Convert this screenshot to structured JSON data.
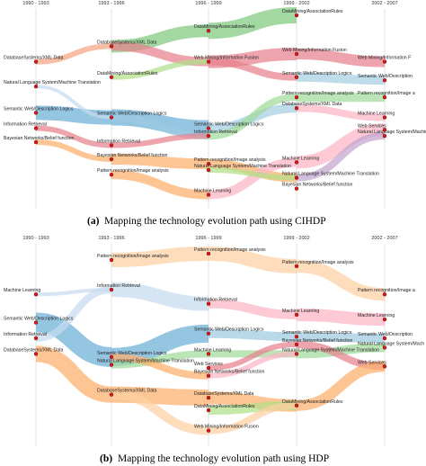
{
  "panels": [
    {
      "id": "a",
      "caption_letter": "(a)",
      "caption_text": "Mapping the technology evolution path using CIHDP",
      "periods": [
        "1990 - 1993",
        "1993 - 1996",
        "1996 - 1999",
        "1999 - 2002",
        "2002 - 2007"
      ],
      "nodes": [
        {
          "label": "DataMining/AssociationRules",
          "col": 3,
          "row": 0
        },
        {
          "label": "DataMining/AssociationRules",
          "col": 2,
          "row": 1
        },
        {
          "label": "DatabaseSystems/XML Data",
          "col": 1,
          "row": 2
        },
        {
          "label": "DatabaseSystems/XML Data",
          "col": 0,
          "row": 3
        },
        {
          "label": "Web Mining/Information Fusion",
          "col": 3,
          "row": 2.5
        },
        {
          "label": "Web Mining/Information Fusion",
          "col": 2,
          "row": 3
        },
        {
          "label": "Web Mining/Information F",
          "col": 4,
          "row": 3
        },
        {
          "label": "DataMining/AssociationRules",
          "col": 1,
          "row": 4
        },
        {
          "label": "Semantic Web/Description Logics",
          "col": 3,
          "row": 4
        },
        {
          "label": "Semantic Web/Description",
          "col": 4,
          "row": 4.2
        },
        {
          "label": "Natural Language System/Machine Translation",
          "col": 0,
          "row": 4.6
        },
        {
          "label": "Pattern recognition/Image analysis",
          "col": 3,
          "row": 5.3
        },
        {
          "label": "Pattern recognition/Image a",
          "col": 4,
          "row": 5.3
        },
        {
          "label": "DatabaseSystems/XML Data",
          "col": 3,
          "row": 6
        },
        {
          "label": "Semantic Web/Description Logics",
          "col": 0,
          "row": 6.3
        },
        {
          "label": "Semantic Web/Description Logics",
          "col": 1,
          "row": 6.6
        },
        {
          "label": "Machine Learning",
          "col": 4,
          "row": 6.6
        },
        {
          "label": "Information Retrieval",
          "col": 0,
          "row": 7.3
        },
        {
          "label": "Semantic Web/Description Logics",
          "col": 2,
          "row": 7.3
        },
        {
          "label": "Information Retrieval",
          "col": 2,
          "row": 7.8
        },
        {
          "label": "Web Services",
          "col": 4,
          "row": 7.4
        },
        {
          "label": "Natural Language System/Machine",
          "col": 4,
          "row": 7.8
        },
        {
          "label": "Bayesian Networks/Belief function",
          "col": 0,
          "row": 8.2
        },
        {
          "label": "Information Retrieval",
          "col": 1,
          "row": 8.4
        },
        {
          "label": "Bayesian Networks/Belief function",
          "col": 1,
          "row": 9.3
        },
        {
          "label": "Pattern recognition/Image analysis",
          "col": 2,
          "row": 9.6
        },
        {
          "label": "Natural Language System/Machine Translation",
          "col": 2,
          "row": 10
        },
        {
          "label": "Machine Learning",
          "col": 3,
          "row": 9.5
        },
        {
          "label": "Pattern recognition/Image analysis",
          "col": 1,
          "row": 10.3
        },
        {
          "label": "Natural Language System/Machine Translation",
          "col": 3,
          "row": 10.5
        },
        {
          "label": "Bayesian Networks/Belief function",
          "col": 3,
          "row": 11.2
        },
        {
          "label": "Machine Learning",
          "col": 2,
          "row": 11.6
        }
      ]
    },
    {
      "id": "b",
      "caption_letter": "(b)",
      "caption_text": "Mapping the technology evolution path using HDP",
      "periods": [
        "1990 - 1993",
        "1993 - 1996",
        "1996 - 1999",
        "1999 - 2002",
        "2002 - 2007"
      ],
      "nodes": [
        {
          "label": "Pattern recognition/Image analysis",
          "col": 2,
          "row": 0
        },
        {
          "label": "Pattern recognition/Image analysis",
          "col": 1,
          "row": 0.4
        },
        {
          "label": "Pattern recognition/Image analysis",
          "col": 3,
          "row": 0.8
        },
        {
          "label": "Information Retrieval",
          "col": 1,
          "row": 2.3
        },
        {
          "label": "Machine Learning",
          "col": 0,
          "row": 2.6
        },
        {
          "label": "Pattern recognition/Image a",
          "col": 4,
          "row": 2.6
        },
        {
          "label": "Information Retrieval",
          "col": 2,
          "row": 3.2
        },
        {
          "label": "Semantic Web/Description Logics",
          "col": 0,
          "row": 4.4
        },
        {
          "label": "Machine Learning",
          "col": 3,
          "row": 3.9
        },
        {
          "label": "Machine Learning",
          "col": 4,
          "row": 4.2
        },
        {
          "label": "Information Retrieval",
          "col": 0,
          "row": 5.4
        },
        {
          "label": "Semantic Web/Description Logics",
          "col": 2,
          "row": 5.1
        },
        {
          "label": "Semantic Web/Description Logics",
          "col": 3,
          "row": 5.3
        },
        {
          "label": "Semantic Web/Description",
          "col": 4,
          "row": 5.4
        },
        {
          "label": "Bayesian Networks/Belief function",
          "col": 3,
          "row": 5.8
        },
        {
          "label": "DatabaseSystems/XML Data",
          "col": 0,
          "row": 6.4
        },
        {
          "label": "Machine Learning",
          "col": 2,
          "row": 6.4
        },
        {
          "label": "Semantic Web/Description Logics",
          "col": 1,
          "row": 6.6
        },
        {
          "label": "Natural Language System/Machine Translation",
          "col": 1,
          "row": 7.1
        },
        {
          "label": "Natural Language System/Machine Translation",
          "col": 3,
          "row": 6.4
        },
        {
          "label": "Natural Language System/Mach",
          "col": 4,
          "row": 6
        },
        {
          "label": "Web Services",
          "col": 2,
          "row": 7.3
        },
        {
          "label": "Web Services",
          "col": 4,
          "row": 7.2
        },
        {
          "label": "Bayesian Networks/Belief function",
          "col": 2,
          "row": 7.8
        },
        {
          "label": "DatabaseSystems/XML Data",
          "col": 1,
          "row": 9
        },
        {
          "label": "DatabaseSystems/XML Data",
          "col": 2,
          "row": 9.2
        },
        {
          "label": "DataMining/AssociationRules",
          "col": 2,
          "row": 10
        },
        {
          "label": "DataMining/AssociationRules",
          "col": 3,
          "row": 9.7
        },
        {
          "label": "Web Mining/Information Fusion",
          "col": 2,
          "row": 11.3
        }
      ]
    }
  ]
}
